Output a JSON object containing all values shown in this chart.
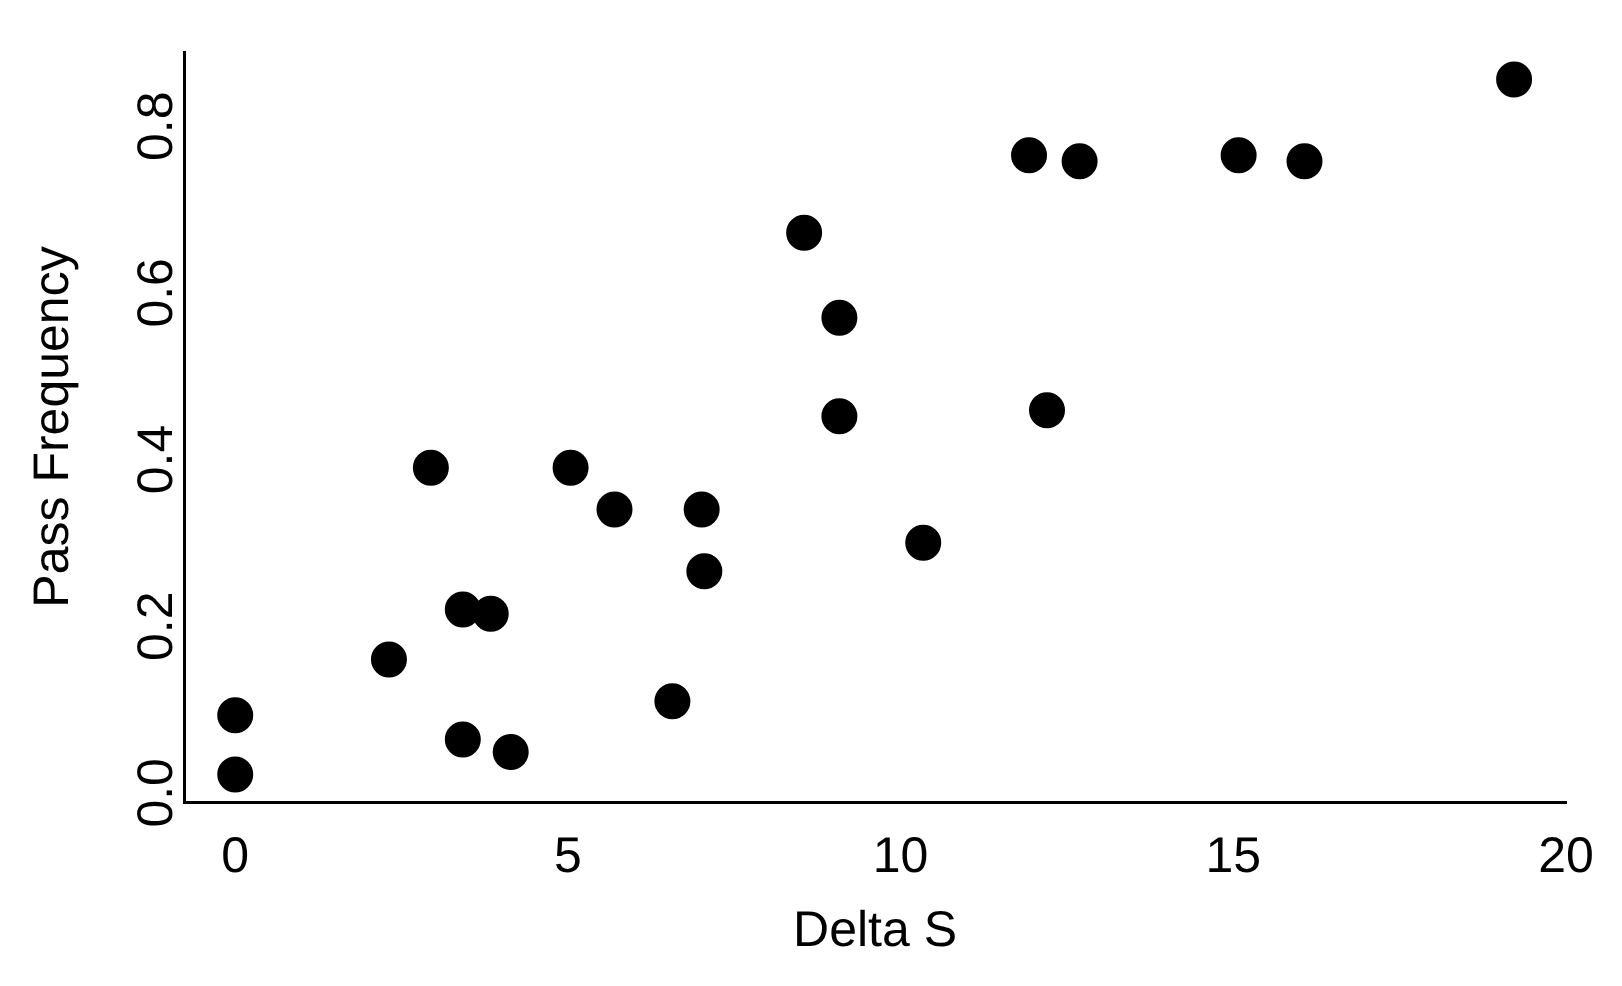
{
  "chart_data": {
    "type": "scatter",
    "xlabel": "Delta S",
    "ylabel": "Pass Frequency",
    "x": [
      0,
      0,
      2.31,
      2.94,
      3.42,
      3.84,
      3.42,
      4.14,
      5.04,
      5.7,
      6.57,
      7.01,
      7.05,
      8.55,
      9.08,
      9.08,
      10.34,
      11.93,
      12.2,
      12.69,
      15.08,
      16.07,
      19.22
    ],
    "series": [
      {
        "color": "#000000",
        "values": [
          0.093,
          0.022,
          0.16,
          0.39,
          0.22,
          0.215,
          0.064,
          0.049,
          0.39,
          0.34,
          0.11,
          0.34,
          0.266,
          0.672,
          0.57,
          0.452,
          0.3,
          0.765,
          0.459,
          0.758,
          0.765,
          0.758,
          0.856
        ]
      }
    ],
    "xlim": [
      -0.77,
      20
    ],
    "ylim": [
      -0.011,
      0.889
    ],
    "xticks": [
      0,
      5,
      10,
      15,
      20
    ],
    "yticks": [
      {
        "value": 0,
        "label": "0.0"
      },
      {
        "value": 0.2,
        "label": "0.2"
      },
      {
        "value": 0.4,
        "label": "0.4"
      },
      {
        "value": 0.6,
        "label": "0.6"
      },
      {
        "value": 0.8,
        "label": "0.8"
      }
    ],
    "grid": false,
    "legend": false,
    "marker": "circle"
  }
}
